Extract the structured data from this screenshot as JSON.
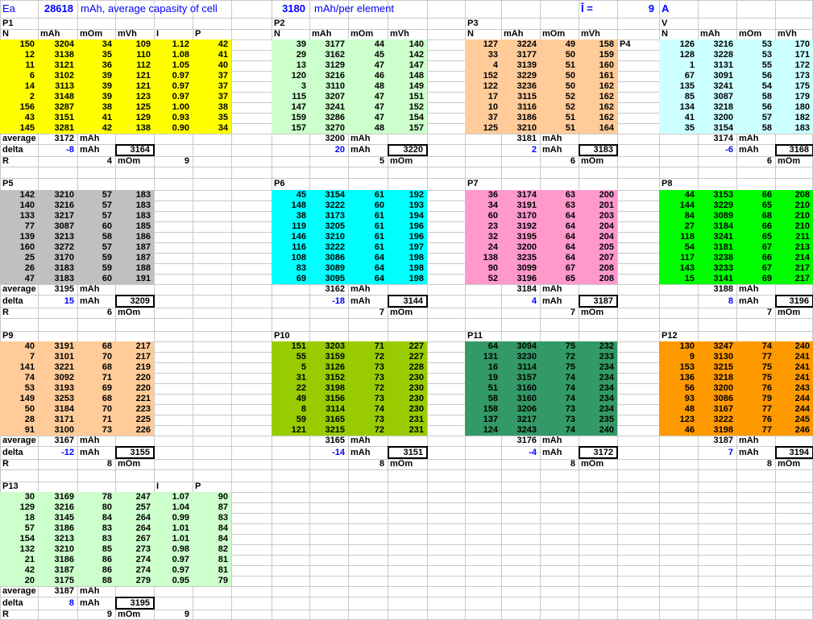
{
  "header": {
    "ea_label": "Ea",
    "total_capacity": 28618,
    "total_caption": "mAh, average capasity of cell",
    "per_element_value": 3180,
    "per_element_caption": "mAh/per element",
    "current_label": "Î =",
    "current_value": 9,
    "current_unit": "A"
  },
  "labels": {
    "average": "average",
    "delta": "delta",
    "resistance": "R",
    "mah": "mAh",
    "mohm": "mOm"
  },
  "columns": [
    "N",
    "mAh",
    "mOm",
    "mVh",
    "I",
    "P"
  ],
  "blocks": [
    {
      "name": "P1",
      "fill": "#FFFF00",
      "rows": [
        [
          150,
          3204,
          34,
          109,
          "1.12",
          42
        ],
        [
          12,
          3138,
          35,
          110,
          "1.08",
          41
        ],
        [
          11,
          3121,
          36,
          112,
          "1.05",
          40
        ],
        [
          6,
          3102,
          39,
          121,
          "0.97",
          37
        ],
        [
          14,
          3113,
          39,
          121,
          "0.97",
          37
        ],
        [
          2,
          3148,
          39,
          123,
          "0.97",
          37
        ],
        [
          156,
          3287,
          38,
          125,
          "1.00",
          38
        ],
        [
          43,
          3151,
          41,
          129,
          "0.93",
          35
        ],
        [
          145,
          3281,
          42,
          138,
          "0.90",
          34
        ]
      ],
      "average": 3172,
      "delta": -8,
      "boxed": 3164,
      "r": 4,
      "r_extra": 9
    },
    {
      "name": "P2",
      "fill": "#CCFFCC",
      "rows": [
        [
          39,
          3177,
          44,
          140
        ],
        [
          29,
          3162,
          45,
          142
        ],
        [
          13,
          3129,
          47,
          147
        ],
        [
          120,
          3216,
          46,
          148
        ],
        [
          3,
          3110,
          48,
          149
        ],
        [
          115,
          3207,
          47,
          151
        ],
        [
          147,
          3241,
          47,
          152
        ],
        [
          159,
          3286,
          47,
          154
        ],
        [
          157,
          3270,
          48,
          157
        ]
      ],
      "average": 3200,
      "delta": 20,
      "boxed": 3220,
      "r": 5
    },
    {
      "name": "P3",
      "fill": "#FFCC99",
      "rows": [
        [
          127,
          3224,
          49,
          158
        ],
        [
          33,
          3177,
          50,
          159
        ],
        [
          4,
          3139,
          51,
          160
        ],
        [
          152,
          3229,
          50,
          161
        ],
        [
          122,
          3236,
          50,
          162
        ],
        [
          17,
          3115,
          52,
          162
        ],
        [
          10,
          3116,
          52,
          162
        ],
        [
          37,
          3186,
          51,
          162
        ],
        [
          125,
          3210,
          51,
          164
        ]
      ],
      "average": 3181,
      "delta": 2,
      "boxed": 3183,
      "r": 6
    },
    {
      "name": "P4",
      "fill": "#CCFFFF",
      "corner_label": "V",
      "side_label": "P4",
      "rows": [
        [
          126,
          3216,
          53,
          170
        ],
        [
          128,
          3228,
          53,
          171
        ],
        [
          1,
          3131,
          55,
          172
        ],
        [
          67,
          3091,
          56,
          173
        ],
        [
          135,
          3241,
          54,
          175
        ],
        [
          85,
          3087,
          58,
          179
        ],
        [
          134,
          3218,
          56,
          180
        ],
        [
          41,
          3200,
          57,
          182
        ],
        [
          35,
          3154,
          58,
          183
        ]
      ],
      "average": 3174,
      "delta": -6,
      "boxed": 3168,
      "r": 6
    },
    {
      "name": "P5",
      "fill": "#C0C0C0",
      "rows": [
        [
          142,
          3210,
          57,
          183
        ],
        [
          140,
          3216,
          57,
          183
        ],
        [
          133,
          3217,
          57,
          183
        ],
        [
          77,
          3087,
          60,
          185
        ],
        [
          139,
          3213,
          58,
          186
        ],
        [
          160,
          3272,
          57,
          187
        ],
        [
          25,
          3170,
          59,
          187
        ],
        [
          26,
          3183,
          59,
          188
        ],
        [
          47,
          3183,
          60,
          191
        ]
      ],
      "average": 3195,
      "delta": 15,
      "boxed": 3209,
      "r": 6
    },
    {
      "name": "P6",
      "fill": "#00FFFF",
      "rows": [
        [
          45,
          3154,
          61,
          192
        ],
        [
          148,
          3222,
          60,
          193
        ],
        [
          38,
          3173,
          61,
          194
        ],
        [
          119,
          3205,
          61,
          196
        ],
        [
          146,
          3210,
          61,
          196
        ],
        [
          116,
          3222,
          61,
          197
        ],
        [
          108,
          3086,
          64,
          198
        ],
        [
          83,
          3089,
          64,
          198
        ],
        [
          69,
          3095,
          64,
          198
        ]
      ],
      "average": 3162,
      "delta": -18,
      "boxed": 3144,
      "r": 7
    },
    {
      "name": "P7",
      "fill": "#FF99CC",
      "rows": [
        [
          36,
          3174,
          63,
          200
        ],
        [
          34,
          3191,
          63,
          201
        ],
        [
          60,
          3170,
          64,
          203
        ],
        [
          23,
          3192,
          64,
          204
        ],
        [
          32,
          3195,
          64,
          204
        ],
        [
          24,
          3200,
          64,
          205
        ],
        [
          138,
          3235,
          64,
          207
        ],
        [
          90,
          3099,
          67,
          208
        ],
        [
          52,
          3196,
          65,
          208
        ]
      ],
      "average": 3184,
      "delta": 4,
      "boxed": 3187,
      "r": 7
    },
    {
      "name": "P8",
      "fill": "#00FF00",
      "rows": [
        [
          44,
          3153,
          66,
          208
        ],
        [
          144,
          3229,
          65,
          210
        ],
        [
          84,
          3089,
          68,
          210
        ],
        [
          27,
          3184,
          66,
          210
        ],
        [
          118,
          3241,
          65,
          211
        ],
        [
          54,
          3181,
          67,
          213
        ],
        [
          117,
          3238,
          66,
          214
        ],
        [
          143,
          3233,
          67,
          217
        ],
        [
          15,
          3141,
          69,
          217
        ]
      ],
      "average": 3188,
      "delta": 8,
      "boxed": 3196,
      "r": 7
    },
    {
      "name": "P9",
      "fill": "#FFCC99",
      "rows": [
        [
          40,
          3191,
          68,
          217
        ],
        [
          7,
          3101,
          70,
          217
        ],
        [
          141,
          3221,
          68,
          219
        ],
        [
          74,
          3092,
          71,
          220
        ],
        [
          53,
          3193,
          69,
          220
        ],
        [
          149,
          3253,
          68,
          221
        ],
        [
          50,
          3184,
          70,
          223
        ],
        [
          28,
          3171,
          71,
          225
        ],
        [
          91,
          3100,
          73,
          226
        ]
      ],
      "average": 3167,
      "delta": -12,
      "boxed": 3155,
      "r": 8
    },
    {
      "name": "P10",
      "fill": "#99CC00",
      "rows": [
        [
          151,
          3203,
          71,
          227
        ],
        [
          55,
          3159,
          72,
          227
        ],
        [
          5,
          3126,
          73,
          228
        ],
        [
          31,
          3152,
          73,
          230
        ],
        [
          22,
          3198,
          72,
          230
        ],
        [
          49,
          3156,
          73,
          230
        ],
        [
          8,
          3114,
          74,
          230
        ],
        [
          59,
          3165,
          73,
          231
        ],
        [
          121,
          3215,
          72,
          231
        ]
      ],
      "average": 3165,
      "delta": -14,
      "boxed": 3151,
      "r": 8
    },
    {
      "name": "P11",
      "fill": "#339966",
      "rows": [
        [
          64,
          3094,
          75,
          232
        ],
        [
          131,
          3230,
          72,
          233
        ],
        [
          16,
          3114,
          75,
          234
        ],
        [
          19,
          3157,
          74,
          234
        ],
        [
          51,
          3160,
          74,
          234
        ],
        [
          58,
          3160,
          74,
          234
        ],
        [
          158,
          3206,
          73,
          234
        ],
        [
          137,
          3217,
          73,
          235
        ],
        [
          124,
          3243,
          74,
          240
        ]
      ],
      "average": 3176,
      "delta": -4,
      "boxed": 3172,
      "r": 8
    },
    {
      "name": "P12",
      "fill": "#FF9900",
      "rows": [
        [
          130,
          3247,
          74,
          240
        ],
        [
          9,
          3130,
          77,
          241
        ],
        [
          153,
          3215,
          75,
          241
        ],
        [
          136,
          3218,
          75,
          241
        ],
        [
          56,
          3200,
          76,
          243
        ],
        [
          93,
          3086,
          79,
          244
        ],
        [
          48,
          3167,
          77,
          244
        ],
        [
          123,
          3222,
          76,
          245
        ],
        [
          46,
          3198,
          77,
          246
        ]
      ],
      "average": 3187,
      "delta": 7,
      "boxed": 3194,
      "r": 8
    },
    {
      "name": "P13",
      "fill": "#CCFFCC",
      "rows": [
        [
          30,
          3169,
          78,
          247,
          "1.07",
          90
        ],
        [
          129,
          3216,
          80,
          257,
          "1.04",
          87
        ],
        [
          18,
          3145,
          84,
          264,
          "0.99",
          83
        ],
        [
          57,
          3186,
          83,
          264,
          "1.01",
          84
        ],
        [
          154,
          3213,
          83,
          267,
          "1.01",
          84
        ],
        [
          132,
          3210,
          85,
          273,
          "0.98",
          82
        ],
        [
          21,
          3186,
          86,
          274,
          "0.97",
          81
        ],
        [
          42,
          3187,
          86,
          274,
          "0.97",
          81
        ],
        [
          20,
          3175,
          88,
          279,
          "0.95",
          79
        ]
      ],
      "average": 3187,
      "delta": 8,
      "boxed": 3195,
      "r": 9,
      "r_extra": 9
    }
  ]
}
